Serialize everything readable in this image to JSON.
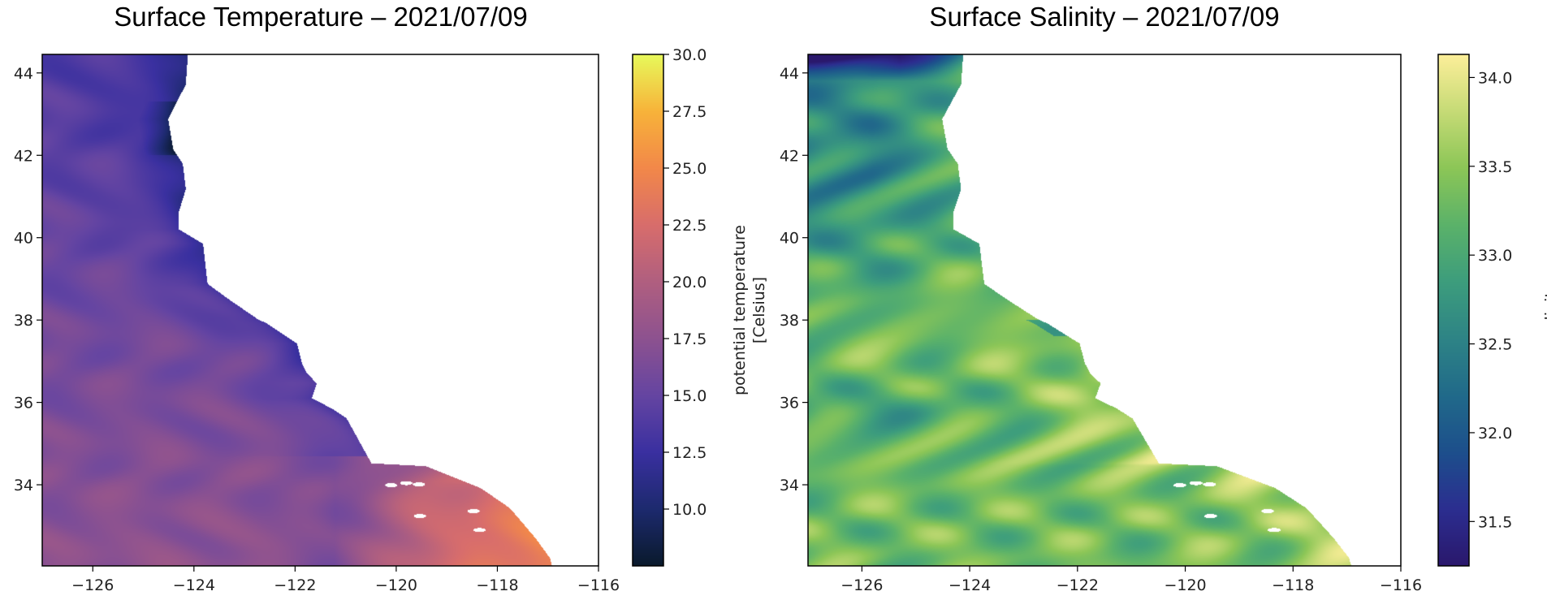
{
  "chart_data": [
    {
      "type": "heatmap",
      "title": "Surface Temperature – 2021/07/09",
      "xlabel": "",
      "ylabel": "",
      "xlim": [
        -127,
        -116
      ],
      "ylim": [
        32.03,
        44.45
      ],
      "xticks": [
        -126,
        -124,
        -122,
        -120,
        -118,
        -116
      ],
      "xtick_labels": [
        "−126",
        "−124",
        "−122",
        "−120",
        "−118",
        "−116"
      ],
      "yticks": [
        34,
        36,
        38,
        40,
        42,
        44
      ],
      "ytick_labels": [
        "34",
        "36",
        "38",
        "40",
        "42",
        "44"
      ],
      "colorbar": {
        "label_lines": [
          "potential temperature",
          "[Celsius]"
        ],
        "vmin": 7.5,
        "vmax": 30.0,
        "ticks": [
          10.0,
          12.5,
          15.0,
          17.5,
          20.0,
          22.5,
          25.0,
          27.5,
          30.0
        ],
        "tick_labels": [
          "10.0",
          "12.5",
          "15.0",
          "17.5",
          "20.0",
          "22.5",
          "25.0",
          "27.5",
          "30.0"
        ],
        "colormap": [
          "#0a1a2c",
          "#1d2a6e",
          "#3a30a0",
          "#6545a2",
          "#8d5290",
          "#b05f80",
          "#d86d6c",
          "#f2884a",
          "#f8b33a",
          "#e8fa5b"
        ]
      },
      "field": "temperature"
    },
    {
      "type": "heatmap",
      "title": "Surface Salinity – 2021/07/09",
      "xlabel": "",
      "ylabel": "",
      "xlim": [
        -127,
        -116
      ],
      "ylim": [
        32.03,
        44.45
      ],
      "xticks": [
        -126,
        -124,
        -122,
        -120,
        -118,
        -116
      ],
      "xtick_labels": [
        "−126",
        "−124",
        "−122",
        "−120",
        "−118",
        "−116"
      ],
      "yticks": [
        34,
        36,
        38,
        40,
        42,
        44
      ],
      "ytick_labels": [
        "34",
        "36",
        "38",
        "40",
        "42",
        "44"
      ],
      "colorbar": {
        "label_lines": [
          "salinity"
        ],
        "vmin": 31.25,
        "vmax": 34.13,
        "ticks": [
          31.5,
          32.0,
          32.5,
          33.0,
          33.5,
          34.0
        ],
        "tick_labels": [
          "31.5",
          "32.0",
          "32.5",
          "33.0",
          "33.5",
          "34.0"
        ],
        "colormap": [
          "#2a186c",
          "#2c2e90",
          "#1d4f8c",
          "#216a8a",
          "#2e8486",
          "#3d9d7d",
          "#5bb26a",
          "#8cc657",
          "#c6db76",
          "#fdef9a"
        ]
      },
      "field": "salinity"
    }
  ],
  "coastline": [
    [
      -124.12,
      44.45
    ],
    [
      -124.16,
      43.72
    ],
    [
      -124.31,
      43.36
    ],
    [
      -124.51,
      42.88
    ],
    [
      -124.41,
      42.15
    ],
    [
      -124.22,
      41.79
    ],
    [
      -124.16,
      41.18
    ],
    [
      -124.31,
      40.58
    ],
    [
      -124.31,
      40.21
    ],
    [
      -123.82,
      39.85
    ],
    [
      -123.73,
      38.88
    ],
    [
      -123.33,
      38.52
    ],
    [
      -122.75,
      38.03
    ],
    [
      -122.55,
      37.91
    ],
    [
      -121.96,
      37.43
    ],
    [
      -121.86,
      36.94
    ],
    [
      -121.76,
      36.7
    ],
    [
      -121.57,
      36.46
    ],
    [
      -121.67,
      36.1
    ],
    [
      -121.27,
      35.85
    ],
    [
      -120.98,
      35.61
    ],
    [
      -120.49,
      34.52
    ],
    [
      -119.41,
      34.45
    ],
    [
      -118.33,
      33.92
    ],
    [
      -117.75,
      33.43
    ],
    [
      -117.25,
      32.71
    ],
    [
      -116.96,
      32.22
    ],
    [
      -116.92,
      32.03
    ]
  ],
  "islands": [
    [
      -120.1,
      33.99
    ],
    [
      -119.8,
      34.04
    ],
    [
      -119.55,
      34.01
    ],
    [
      -118.47,
      33.36
    ],
    [
      -118.35,
      32.9
    ],
    [
      -119.53,
      33.24
    ]
  ]
}
